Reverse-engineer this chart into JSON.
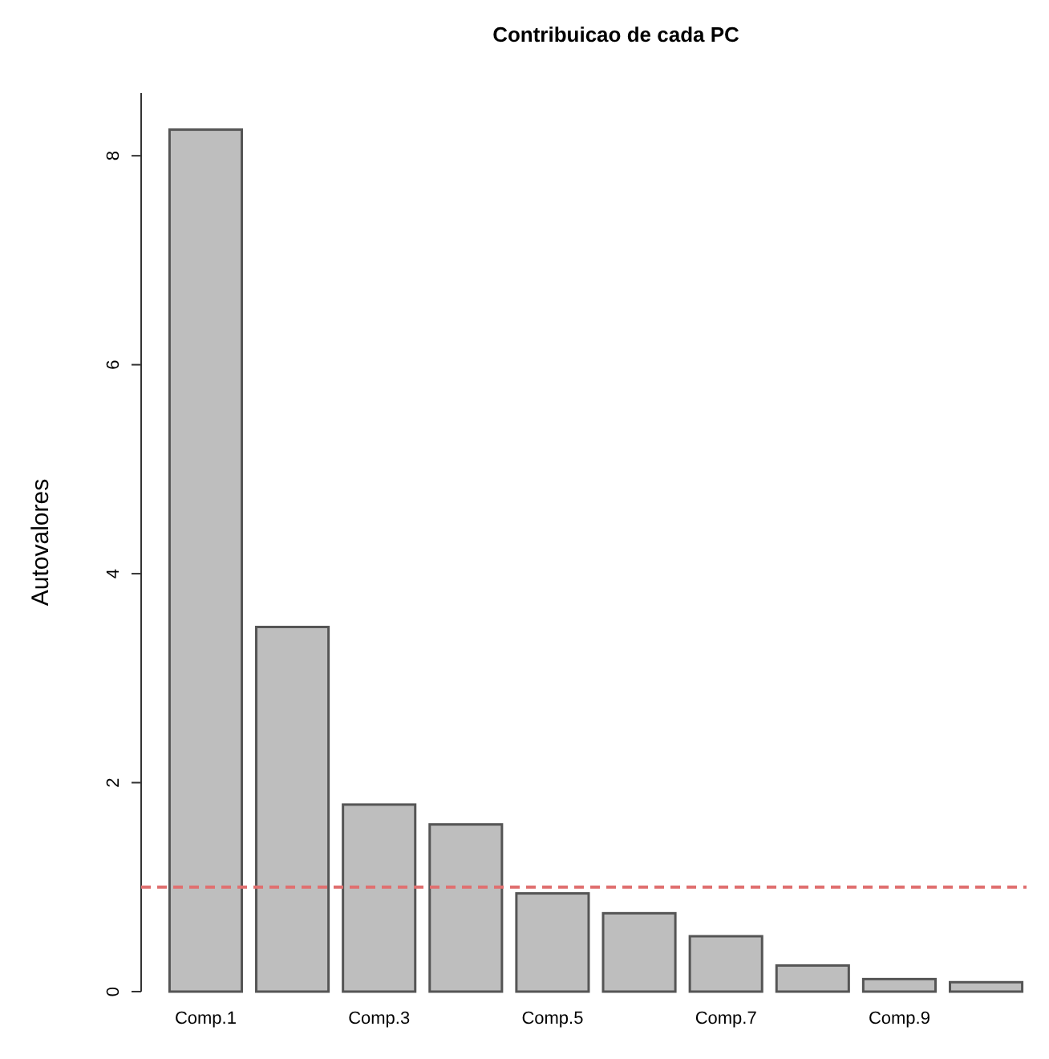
{
  "chart_data": {
    "type": "bar",
    "title": "Contribuicao de cada PC",
    "ylabel": "Autovalores",
    "categories": [
      "Comp.1",
      null,
      "Comp.3",
      null,
      "Comp.5",
      null,
      "Comp.7",
      null,
      "Comp.9",
      null
    ],
    "values": [
      8.25,
      3.49,
      1.79,
      1.6,
      0.94,
      0.75,
      0.53,
      0.25,
      0.12,
      0.09
    ],
    "color": "#bebebe",
    "ylim": [
      0,
      8.6
    ],
    "yticks": [
      0,
      2,
      4,
      6,
      8
    ],
    "grid": false,
    "ref_lines": [
      {
        "axis": "y",
        "value": 1,
        "color": "#e07070",
        "line_style": "dashed"
      }
    ]
  }
}
